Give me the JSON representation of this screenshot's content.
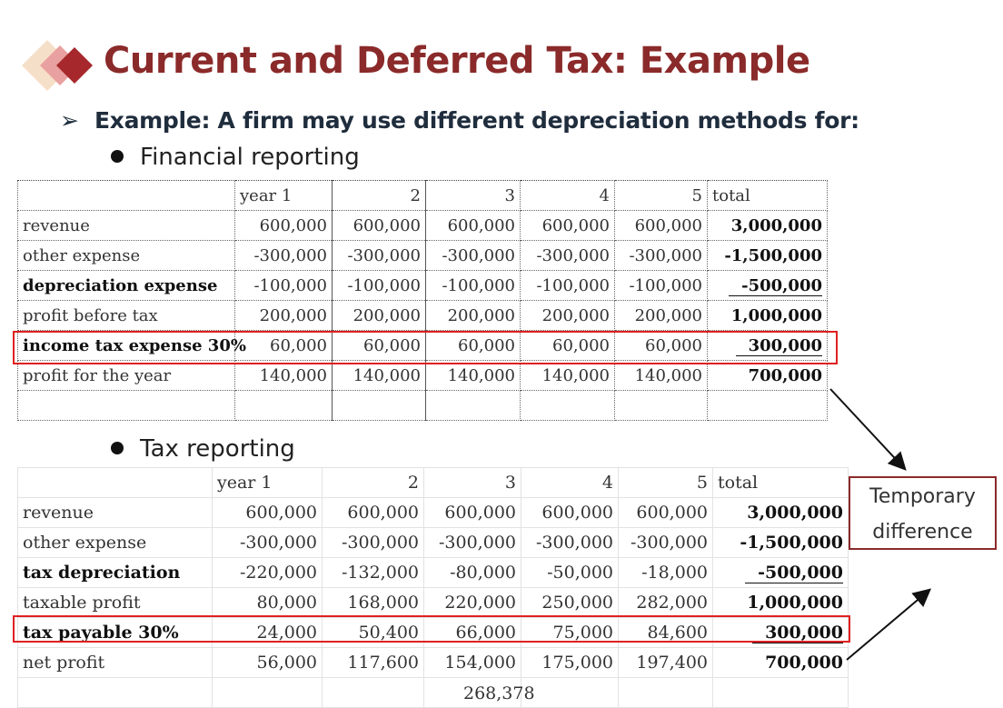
{
  "slide": {
    "title": "Current and Deferred Tax: Example",
    "subtitle": "Example: A firm may use different depreciation methods for:",
    "bullet_financial": "Financial reporting",
    "bullet_tax": "Tax reporting",
    "callout_line1": "Temporary",
    "callout_line2": "difference",
    "cut_off_value": "268,378"
  },
  "financial": {
    "header": [
      "",
      "year 1",
      "2",
      "3",
      "4",
      "5",
      "total"
    ],
    "rows": [
      [
        "revenue",
        "600,000",
        "600,000",
        "600,000",
        "600,000",
        "600,000",
        "3,000,000"
      ],
      [
        "other expense",
        "-300,000",
        "-300,000",
        "-300,000",
        "-300,000",
        "-300,000",
        "-1,500,000"
      ],
      [
        "depreciation expense",
        "-100,000",
        "-100,000",
        "-100,000",
        "-100,000",
        "-100,000",
        "-500,000"
      ],
      [
        "profit before tax",
        "200,000",
        "200,000",
        "200,000",
        "200,000",
        "200,000",
        "1,000,000"
      ],
      [
        "income tax expense 30%",
        "60,000",
        "60,000",
        "60,000",
        "60,000",
        "60,000",
        "300,000"
      ],
      [
        "profit for the year",
        "140,000",
        "140,000",
        "140,000",
        "140,000",
        "140,000",
        "700,000"
      ]
    ]
  },
  "tax": {
    "header": [
      "",
      "year 1",
      "2",
      "3",
      "4",
      "5",
      "total"
    ],
    "rows": [
      [
        "revenue",
        "600,000",
        "600,000",
        "600,000",
        "600,000",
        "600,000",
        "3,000,000"
      ],
      [
        "other expense",
        "-300,000",
        "-300,000",
        "-300,000",
        "-300,000",
        "-300,000",
        "-1,500,000"
      ],
      [
        "tax depreciation",
        "-220,000",
        "-132,000",
        "-80,000",
        "-50,000",
        "-18,000",
        "-500,000"
      ],
      [
        "taxable profit",
        "80,000",
        "168,000",
        "220,000",
        "250,000",
        "282,000",
        "1,000,000"
      ],
      [
        "tax payable 30%",
        "24,000",
        "50,400",
        "66,000",
        "75,000",
        "84,600",
        "300,000"
      ],
      [
        "net profit",
        "56,000",
        "117,600",
        "154,000",
        "175,000",
        "197,400",
        "700,000"
      ]
    ]
  },
  "colors": {
    "title": "#8b2a2a",
    "highlight": "#e02020",
    "callout_border": "#8b2a2a"
  }
}
